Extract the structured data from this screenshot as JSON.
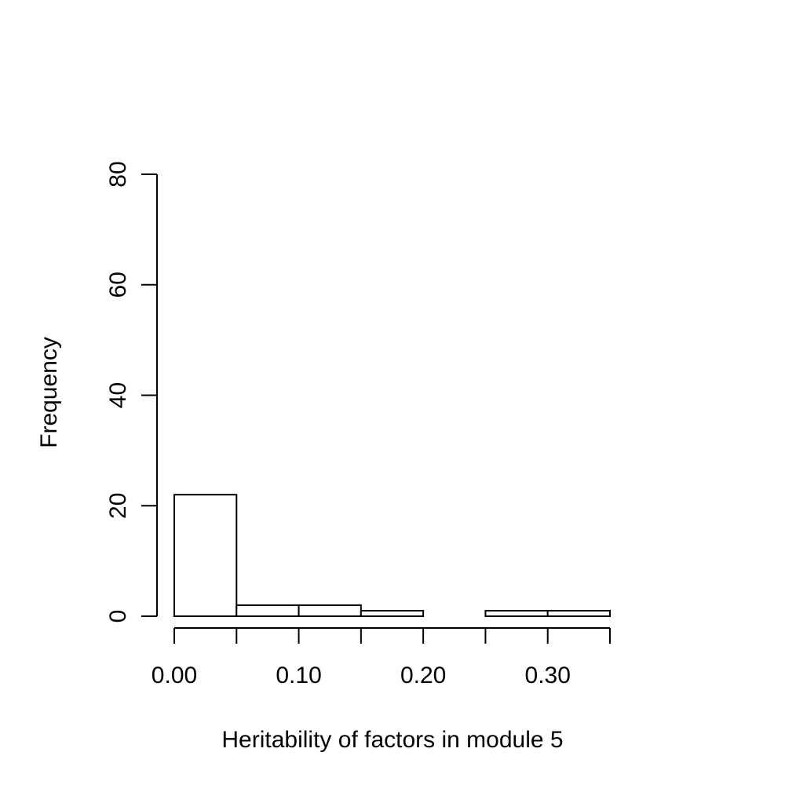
{
  "chart_data": {
    "type": "bar",
    "title": "",
    "xlabel": "Heritability of factors in module 5",
    "ylabel": "Frequency",
    "bins": [
      {
        "x0": 0.0,
        "x1": 0.05,
        "count": 22
      },
      {
        "x0": 0.05,
        "x1": 0.1,
        "count": 2
      },
      {
        "x0": 0.1,
        "x1": 0.15,
        "count": 2
      },
      {
        "x0": 0.15,
        "x1": 0.2,
        "count": 1
      },
      {
        "x0": 0.2,
        "x1": 0.25,
        "count": 0
      },
      {
        "x0": 0.25,
        "x1": 0.3,
        "count": 1
      },
      {
        "x0": 0.3,
        "x1": 0.35,
        "count": 1
      }
    ],
    "xlim": [
      0.0,
      0.35
    ],
    "ylim": [
      0,
      80
    ],
    "x_ticks": [
      0.0,
      0.05,
      0.1,
      0.15,
      0.2,
      0.25,
      0.3,
      0.35
    ],
    "x_tick_labels": [
      {
        "value": 0.0,
        "label": "0.00"
      },
      {
        "value": 0.1,
        "label": "0.10"
      },
      {
        "value": 0.2,
        "label": "0.20"
      },
      {
        "value": 0.3,
        "label": "0.30"
      }
    ],
    "y_ticks": [
      0,
      20,
      40,
      60,
      80
    ],
    "y_tick_labels": [
      "0",
      "20",
      "40",
      "60",
      "80"
    ],
    "grid": false,
    "legend": "none",
    "colors": {
      "bar_fill": "#ffffff",
      "bar_stroke": "#000000"
    }
  }
}
